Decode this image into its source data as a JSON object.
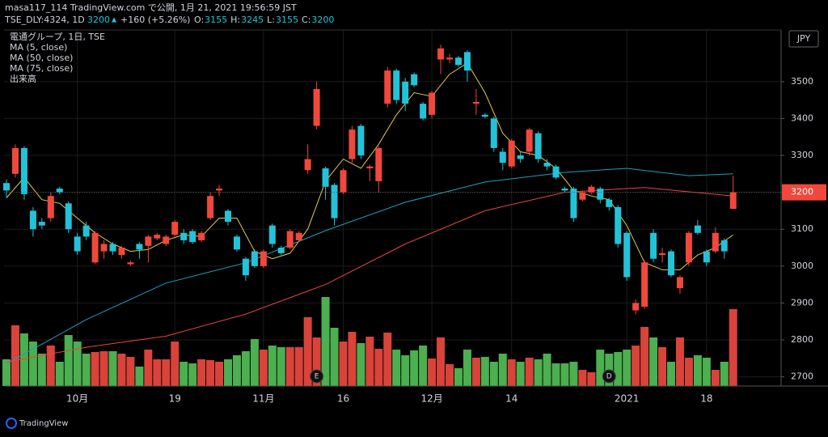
{
  "header": {
    "publisher": "masa117_114 TradingView.com で公開, 1月 21, 2021 19:56:59 JST",
    "symbol": "TSE_DLY:4324, 1D",
    "last": "3200",
    "change": "+160 (+5.26%)",
    "ohlc": [
      {
        "label": "O:",
        "value": "3155"
      },
      {
        "label": "H:",
        "value": "3245"
      },
      {
        "label": "L:",
        "value": "3155"
      },
      {
        "label": "C:",
        "value": "3200"
      }
    ]
  },
  "footer": {
    "brand": "TradingView"
  },
  "chart_data": {
    "type": "candlestick",
    "title": "電通グループ, 1日, TSE",
    "currency": "JPY",
    "up_color": "#f0483c",
    "down_color": "#22c3d8",
    "volume_up_color": "#d9433a",
    "volume_down_color": "#4caf50",
    "volume_name": "出来高",
    "open": [
      3225,
      3250,
      3320,
      3150,
      3120,
      3130,
      3210,
      3170,
      3080,
      3110,
      3010,
      3040,
      3060,
      3030,
      3005,
      3060,
      3055,
      3075,
      3060,
      3085,
      3090,
      3095,
      3070,
      3130,
      3205,
      3150,
      3080,
      3020,
      3040,
      3000,
      3110,
      3050,
      3050,
      3070,
      3260,
      3380,
      3265,
      3220,
      3200,
      3290,
      3380,
      3265,
      3230,
      3440,
      3530,
      3500,
      3520,
      3440,
      3410,
      3560,
      3560,
      3565,
      3580,
      3440,
      3410,
      3400,
      3310,
      3270,
      3300,
      3310,
      3360,
      3280,
      3270,
      3210,
      3210,
      3180,
      3200,
      3210,
      3180,
      3160,
      3090,
      2880,
      2890,
      3090,
      3030,
      3040,
      2940,
      3010,
      3110,
      3040,
      3040,
      3070,
      3155
    ],
    "close": [
      3205,
      3320,
      3195,
      3100,
      3110,
      3190,
      3200,
      3100,
      3040,
      3080,
      3090,
      3060,
      3040,
      3050,
      3010,
      3045,
      3080,
      3085,
      3080,
      3120,
      3070,
      3065,
      3090,
      3190,
      3210,
      3120,
      3045,
      2975,
      3000,
      3040,
      3060,
      3035,
      3095,
      3090,
      3290,
      3480,
      3215,
      3130,
      3260,
      3370,
      3300,
      3270,
      3320,
      3530,
      3450,
      3440,
      3490,
      3400,
      3470,
      3590,
      3565,
      3545,
      3530,
      3445,
      3405,
      3320,
      3280,
      3340,
      3290,
      3370,
      3290,
      3270,
      3240,
      3205,
      3130,
      3200,
      3215,
      3180,
      3160,
      3060,
      2970,
      2900,
      3010,
      3020,
      3035,
      2975,
      2970,
      3090,
      3090,
      3010,
      3090,
      3040,
      3200
    ],
    "high": [
      3235,
      3330,
      3325,
      3160,
      3130,
      3200,
      3215,
      3175,
      3090,
      3120,
      3095,
      3070,
      3065,
      3055,
      3015,
      3065,
      3085,
      3090,
      3085,
      3125,
      3100,
      3100,
      3095,
      3200,
      3220,
      3155,
      3085,
      3025,
      3045,
      3045,
      3115,
      3055,
      3100,
      3095,
      3330,
      3500,
      3270,
      3225,
      3265,
      3380,
      3385,
      3275,
      3325,
      3540,
      3535,
      3510,
      3525,
      3445,
      3475,
      3600,
      3575,
      3570,
      3585,
      3480,
      3415,
      3405,
      3320,
      3345,
      3310,
      3375,
      3365,
      3290,
      3275,
      3215,
      3215,
      3205,
      3220,
      3215,
      3185,
      3165,
      3095,
      2910,
      3015,
      3100,
      3050,
      3045,
      2975,
      3095,
      3125,
      3045,
      3105,
      3075,
      3245
    ],
    "low": [
      3185,
      3240,
      3180,
      3080,
      3100,
      3120,
      3195,
      3090,
      3030,
      3070,
      3005,
      3020,
      3030,
      3020,
      3000,
      3020,
      3010,
      3070,
      3055,
      3080,
      3060,
      3060,
      3065,
      3125,
      3190,
      3110,
      3040,
      2960,
      2995,
      2995,
      3050,
      3030,
      3045,
      3065,
      3250,
      3370,
      3180,
      3110,
      3195,
      3280,
      3290,
      3230,
      3200,
      3430,
      3440,
      3420,
      3485,
      3395,
      3400,
      3520,
      3550,
      3540,
      3500,
      3410,
      3400,
      3310,
      3260,
      3265,
      3280,
      3300,
      3280,
      3260,
      3235,
      3200,
      3120,
      3175,
      3195,
      3170,
      3150,
      3050,
      2960,
      2870,
      2885,
      3010,
      3010,
      2970,
      2925,
      3000,
      3085,
      3000,
      3035,
      3020,
      3155
    ],
    "volume": [
      33,
      75,
      65,
      55,
      40,
      50,
      30,
      63,
      55,
      40,
      42,
      43,
      43,
      40,
      36,
      24,
      45,
      33,
      33,
      55,
      30,
      28,
      33,
      32,
      30,
      33,
      38,
      43,
      58,
      45,
      50,
      48,
      48,
      48,
      85,
      60,
      110,
      72,
      55,
      67,
      53,
      61,
      46,
      66,
      45,
      38,
      44,
      50,
      34,
      60,
      27,
      22,
      45,
      35,
      36,
      30,
      40,
      33,
      30,
      35,
      33,
      40,
      28,
      28,
      30,
      20,
      17,
      45,
      40,
      42,
      45,
      50,
      73,
      60,
      48,
      30,
      60,
      35,
      38,
      35,
      20,
      30,
      95
    ],
    "series": [
      {
        "name": "MA (5, close)",
        "color": "#e3c84a",
        "x": [
          0,
          2,
          4,
          6,
          8,
          10,
          12,
          14,
          16,
          18,
          20,
          22,
          24,
          26,
          28,
          30,
          32,
          34,
          36,
          38,
          40,
          42,
          44,
          46,
          48,
          50,
          52,
          54,
          56,
          58,
          60,
          62,
          64,
          66,
          68,
          70,
          72,
          74,
          76,
          78,
          80,
          82
        ],
        "values": [
          3185,
          3240,
          3180,
          3170,
          3130,
          3090,
          3060,
          3040,
          3045,
          3070,
          3085,
          3080,
          3130,
          3130,
          3040,
          3020,
          3035,
          3100,
          3230,
          3290,
          3265,
          3330,
          3410,
          3470,
          3460,
          3520,
          3550,
          3470,
          3360,
          3310,
          3300,
          3265,
          3205,
          3190,
          3180,
          3110,
          3010,
          2990,
          2990,
          3030,
          3050,
          3085
        ]
      },
      {
        "name": "MA (50, close)",
        "color": "#1f9fc0",
        "x": [
          0,
          9,
          18,
          27,
          36,
          45,
          54,
          63,
          70,
          77,
          82
        ],
        "values": [
          2735,
          2855,
          2954,
          3009,
          3096,
          3173,
          3228,
          3254,
          3265,
          3245,
          3250
        ]
      },
      {
        "name": "MA (75, close)",
        "color": "#e8473c",
        "x": [
          0,
          9,
          18,
          27,
          36,
          45,
          54,
          63,
          72,
          82
        ],
        "values": [
          2740,
          2780,
          2810,
          2870,
          2950,
          3060,
          3150,
          3200,
          3213,
          3190
        ]
      }
    ],
    "events": [
      {
        "label": "E",
        "x": 35
      },
      {
        "label": "D",
        "x": 68
      }
    ],
    "last_price": 3200,
    "ylim": [
      2675,
      3640
    ],
    "yticks": [
      2700,
      2800,
      2900,
      3000,
      3100,
      3200,
      3300,
      3400,
      3500
    ],
    "xticks": [
      {
        "value": 8,
        "label": "10月"
      },
      {
        "value": 19,
        "label": "19"
      },
      {
        "value": 29,
        "label": "11月"
      },
      {
        "value": 38,
        "label": "16"
      },
      {
        "value": 48,
        "label": "12月"
      },
      {
        "value": 57,
        "label": "14"
      },
      {
        "value": 70,
        "label": "2021"
      },
      {
        "value": 79,
        "label": "18"
      }
    ],
    "grid": true
  }
}
